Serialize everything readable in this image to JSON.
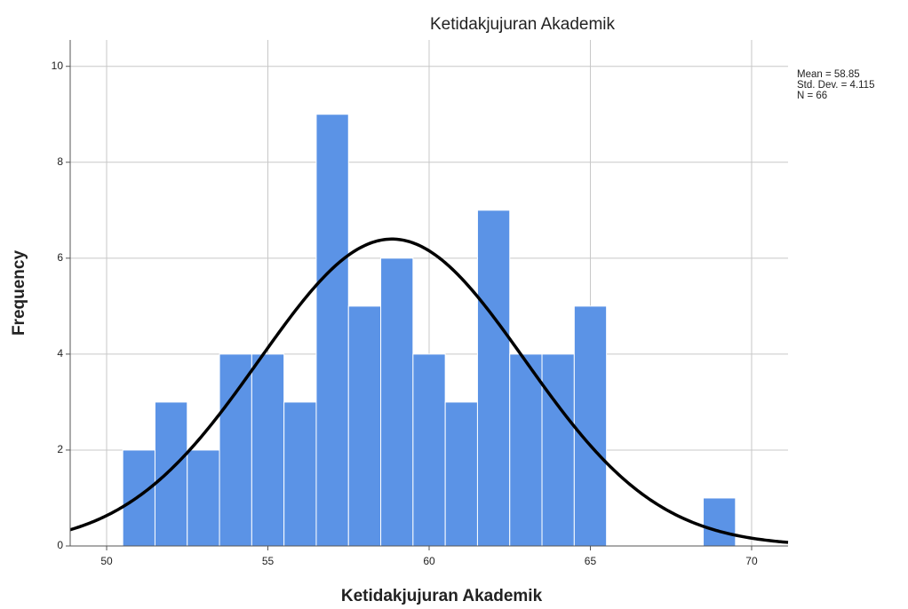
{
  "chart_data": {
    "type": "histogram",
    "title": "Ketidakjujuran Akademik",
    "x_label": "Ketidakjujuran Akademik",
    "y_label": "Frequency",
    "bins": [
      50.5,
      51.5,
      52.5,
      53.5,
      54.5,
      55.5,
      56.5,
      57.5,
      58.5,
      59.5,
      60.5,
      61.5,
      62.5,
      63.5,
      64.5,
      65.5,
      66.5,
      67.5,
      68.5,
      69.5
    ],
    "values": [
      2,
      3,
      2,
      4,
      4,
      3,
      9,
      5,
      6,
      4,
      3,
      7,
      4,
      4,
      5,
      0,
      0,
      0,
      1
    ],
    "color": "#5b93e6",
    "curve_color": "#000000",
    "xlim": [
      48.87,
      71.13
    ],
    "xticks": [
      50,
      55,
      60,
      65,
      70
    ],
    "ylim": [
      0,
      10.55
    ],
    "yticks": [
      0,
      2,
      4,
      6,
      8,
      10
    ],
    "grid": true,
    "stats": [
      {
        "value": 58.85,
        "label": "Mean = 58.85"
      },
      {
        "value": 4.115,
        "label": "Std. Dev. = 4.115"
      },
      {
        "value": 66,
        "label": "N = 66"
      }
    ]
  }
}
